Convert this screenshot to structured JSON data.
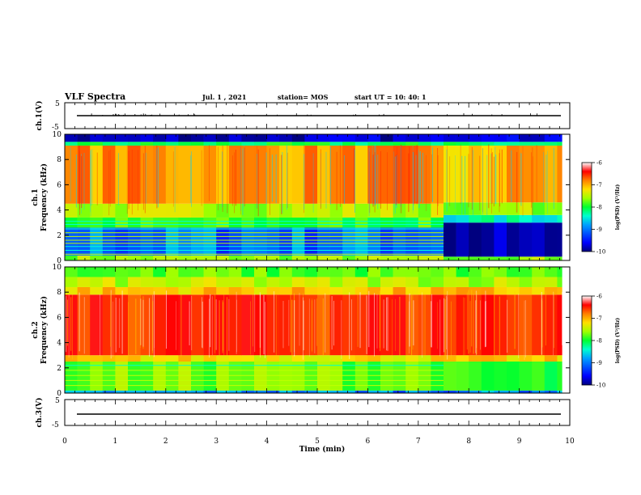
{
  "header": {
    "title": "VLF Spectra",
    "date": "Jul.  1  , 2021",
    "station": "station= MOS",
    "start_ut": "start  UT =   10: 40: 1"
  },
  "chart_data": [
    {
      "type": "line",
      "panel": "ch1-waveform",
      "ylabel": "ch.1(V)",
      "ylim": [
        -5,
        5
      ],
      "y_ticks": [
        "5",
        "-5"
      ],
      "x": [
        0,
        10
      ],
      "y": [
        0,
        0
      ]
    },
    {
      "type": "heatmap",
      "panel": "ch1-spectrogram",
      "ylabel": "ch.1\nFrequency  (kHz)",
      "ylim": [
        0,
        10
      ],
      "xlim": [
        0,
        10
      ],
      "y_ticks": [
        "0",
        "2",
        "4",
        "6",
        "8",
        "10"
      ],
      "colorbar": {
        "label": "log(PSD) (V²/Hz)",
        "range": [
          -10,
          -6
        ],
        "ticks": [
          "-6",
          "-7",
          "-8",
          "-9",
          "-10"
        ]
      },
      "bands": [
        {
          "t_range": [
            0,
            7.5
          ],
          "f_range": [
            0,
            0.4
          ],
          "level": -8
        },
        {
          "t_range": [
            0,
            7.5
          ],
          "f_range": [
            0.4,
            2.6
          ],
          "level": -9.3
        },
        {
          "t_range": [
            0,
            7.5
          ],
          "f_range": [
            2.6,
            3.4
          ],
          "level": -8.3
        },
        {
          "t_range": [
            0,
            7.5
          ],
          "f_range": [
            3.4,
            4.5
          ],
          "level": -7.9
        },
        {
          "t_range": [
            0,
            7.5
          ],
          "f_range": [
            4.5,
            9.1
          ],
          "level": -7.3
        },
        {
          "t_range": [
            0,
            7.5
          ],
          "f_range": [
            9.1,
            9.4
          ],
          "level": -8.5
        },
        {
          "t_range": [
            0,
            7.5
          ],
          "f_range": [
            9.4,
            10
          ],
          "level": -9.8
        },
        {
          "t_range": [
            7.5,
            9.85
          ],
          "f_range": [
            0,
            0.3
          ],
          "level": -8
        },
        {
          "t_range": [
            7.5,
            9.85
          ],
          "f_range": [
            0.3,
            3.0
          ],
          "level": -9.9
        },
        {
          "t_range": [
            7.5,
            9.85
          ],
          "f_range": [
            3.0,
            3.6
          ],
          "level": -8.8
        },
        {
          "t_range": [
            7.5,
            9.85
          ],
          "f_range": [
            3.6,
            4.6
          ],
          "level": -8.0
        },
        {
          "t_range": [
            7.5,
            9.85
          ],
          "f_range": [
            4.6,
            9.1
          ],
          "level": -7.4
        },
        {
          "t_range": [
            7.5,
            9.85
          ],
          "f_range": [
            9.1,
            9.4
          ],
          "level": -8.6
        },
        {
          "t_range": [
            7.5,
            9.85
          ],
          "f_range": [
            9.4,
            10
          ],
          "level": -9.8
        }
      ],
      "lines_khz": [
        0.5,
        0.8,
        1.1,
        1.35,
        1.6,
        1.9,
        2.2,
        2.5,
        2.85,
        3.1
      ],
      "lines_end_min": 7.5
    },
    {
      "type": "heatmap",
      "panel": "ch2-spectrogram",
      "ylabel": "ch.2\nFrequency  (kHz)",
      "ylim": [
        0,
        10
      ],
      "xlim": [
        0,
        10
      ],
      "y_ticks": [
        "0",
        "2",
        "4",
        "6",
        "8",
        "10"
      ],
      "colorbar": {
        "label": "log(PSD) (V²/Hz)",
        "range": [
          -10,
          -6
        ],
        "ticks": [
          "-6",
          "-7",
          "-8",
          "-9",
          "-10"
        ]
      },
      "bands": [
        {
          "t_range": [
            0,
            9.85
          ],
          "f_range": [
            0,
            0.2
          ],
          "level": -9.2
        },
        {
          "t_range": [
            0,
            7.5
          ],
          "f_range": [
            0.2,
            2.5
          ],
          "level": -8.1
        },
        {
          "t_range": [
            7.5,
            9.85
          ],
          "f_range": [
            0.2,
            2.5
          ],
          "level": -8.4
        },
        {
          "t_range": [
            0,
            9.85
          ],
          "f_range": [
            2.5,
            3.0
          ],
          "level": -7.6
        },
        {
          "t_range": [
            0,
            9.85
          ],
          "f_range": [
            3.0,
            7.8
          ],
          "level": -6.9
        },
        {
          "t_range": [
            0,
            9.85
          ],
          "f_range": [
            7.8,
            8.4
          ],
          "level": -7.5
        },
        {
          "t_range": [
            0,
            9.85
          ],
          "f_range": [
            8.4,
            9.2
          ],
          "level": -7.9
        },
        {
          "t_range": [
            0,
            9.85
          ],
          "f_range": [
            9.2,
            10
          ],
          "level": -8.2
        }
      ],
      "lines_khz": [
        0.6,
        1.0,
        1.4,
        1.8,
        2.2
      ],
      "lines_end_min": 7.5
    },
    {
      "type": "line",
      "panel": "ch3-waveform",
      "ylabel": "ch.3(V)",
      "ylim": [
        -5,
        5
      ],
      "y_ticks": [
        "5",
        "-5"
      ],
      "x": [
        0,
        10
      ],
      "y": [
        0,
        0
      ]
    }
  ],
  "x_axis": {
    "label": "Time  (min)",
    "xlim": [
      0,
      10
    ],
    "ticks": [
      "0",
      "1",
      "2",
      "3",
      "4",
      "5",
      "6",
      "7",
      "8",
      "9",
      "10"
    ]
  },
  "colors": {
    "colormap": [
      "#00007f",
      "#0000ff",
      "#00a0ff",
      "#00ffd0",
      "#00ff30",
      "#a0ff00",
      "#ffe000",
      "#ff8000",
      "#ff0000",
      "#ff4040",
      "#ffffff"
    ]
  }
}
